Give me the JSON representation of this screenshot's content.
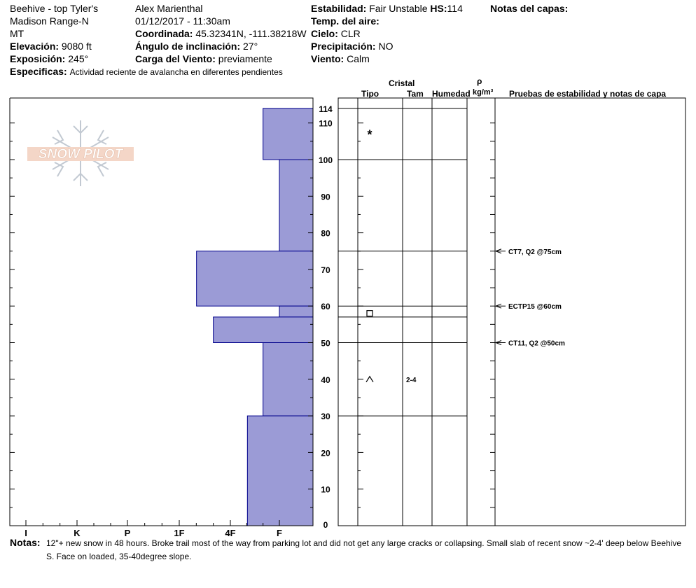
{
  "header": {
    "location": "Beehive - top Tyler's",
    "range": "Madison Range-N",
    "state": "MT",
    "elevation_label": "Elevación:",
    "elevation": "9080 ft",
    "aspect_label": "Exposición:",
    "aspect": "245°",
    "specifics_label": "Especificas:",
    "specifics": "Actividad reciente de avalancha en diferentes pendientes",
    "observer": "Alex Marienthal",
    "datetime": "01/12/2017 - 11:30am",
    "coord_label": "Coordinada:",
    "coord": "45.32341N, -111.38218W",
    "slope_label": "Ángulo de inclinación:",
    "slope": "27°",
    "wind_load_label": "Carga del Viento:",
    "wind_load": "previamente",
    "stability_label": "Estabilidad:",
    "stability": "Fair Unstable",
    "hs_label": "HS:",
    "hs": "114",
    "air_temp_label": "Temp. del aire:",
    "air_temp": "",
    "sky_label": "Cielo:",
    "sky": "CLR",
    "precip_label": "Precipitación:",
    "precip": "NO",
    "wind_label": "Viento:",
    "wind": "Calm",
    "layer_notes_label": "Notas del capas:"
  },
  "logo": {
    "text": "SNOW PILOT"
  },
  "columns": {
    "crystal": "Cristal",
    "type": "Tipo",
    "size": "Tam",
    "moisture": "Humedad",
    "rho": "ρ",
    "density": "kg/m³",
    "tests": "Pruebas de estabilidad y notas de capa"
  },
  "notes": {
    "label": "Notas:",
    "line1": "12\"+ new snow in 48 hours. Broke trail most of the way from parking lot and did not get any large cracks or collapsing. Small slab of recent snow ~2-4' deep below Beehive",
    "line2": "S. Face on loaded, 35-40degree slope."
  },
  "chart_data": {
    "type": "snow-profile",
    "hardness_axis": [
      "I",
      "K",
      "P",
      "1F",
      "4F",
      "F"
    ],
    "depth_ticks": [
      0,
      10,
      20,
      30,
      40,
      50,
      60,
      70,
      80,
      90,
      100,
      110,
      114
    ],
    "ylim": [
      0,
      114
    ],
    "hardness_layers": [
      {
        "top": 114,
        "bottom": 100,
        "hardness": "F-"
      },
      {
        "top": 100,
        "bottom": 75,
        "hardness": "F"
      },
      {
        "top": 75,
        "bottom": 60,
        "hardness": "1F+"
      },
      {
        "top": 60,
        "bottom": 57,
        "hardness": "F"
      },
      {
        "top": 57,
        "bottom": 50,
        "hardness": "4F-"
      },
      {
        "top": 50,
        "bottom": 30,
        "hardness": "F-"
      },
      {
        "top": 30,
        "bottom": 0,
        "hardness": "4F+"
      }
    ],
    "layer_boundaries": [
      114,
      100,
      75,
      60,
      57,
      50,
      30
    ],
    "grain_types": [
      {
        "depth": 107,
        "symbol": "*",
        "size": ""
      },
      {
        "depth": 58,
        "symbol": "□",
        "size": ""
      },
      {
        "depth": 40,
        "symbol": "^",
        "size": "2-4"
      }
    ],
    "stability_tests": [
      {
        "depth": 75,
        "label": "CT7, Q2 @75cm"
      },
      {
        "depth": 60,
        "label": "ECTP15 @60cm"
      },
      {
        "depth": 50,
        "label": "CT11, Q2 @50cm"
      }
    ],
    "colors": {
      "bar_fill": "#9b9bd6",
      "bar_stroke": "#00008b"
    }
  }
}
